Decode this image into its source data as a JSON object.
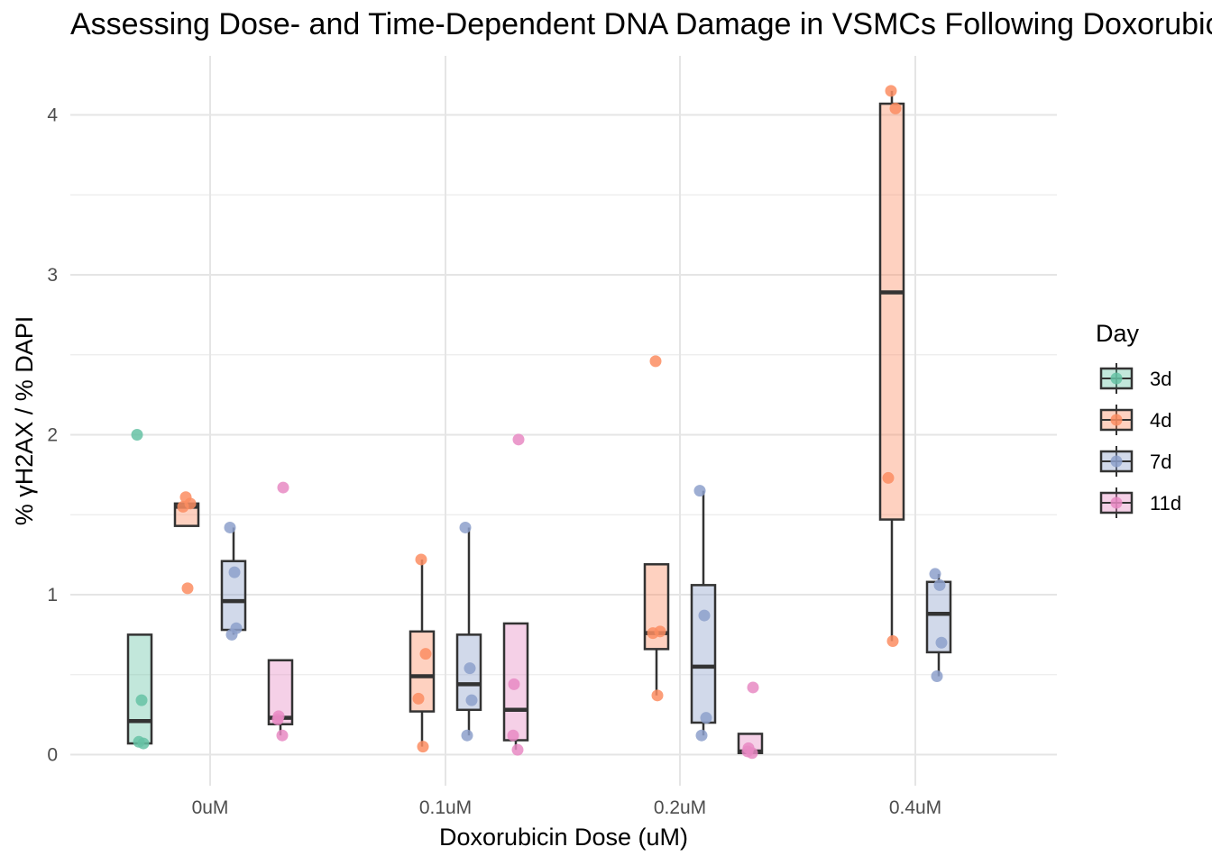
{
  "chart_data": {
    "type": "box",
    "title": "Assessing Dose- and Time-Dependent DNA Damage in VSMCs Following Doxorubicin",
    "xlabel": "Doxorubicin Dose (uM)",
    "ylabel": "% γH2AX / % DAPI",
    "categories": [
      "0uM",
      "0.1uM",
      "0.2uM",
      "0.4uM"
    ],
    "ylim": [
      -0.2,
      4.3
    ],
    "yticks": [
      0,
      1,
      2,
      3,
      4
    ],
    "grid": true,
    "legend": {
      "title": "Day",
      "position": "right",
      "entries": [
        "3d",
        "4d",
        "7d",
        "11d"
      ]
    },
    "series": [
      {
        "name": "3d",
        "color": "#66C2A5",
        "groups": [
          {
            "category": "0uM",
            "box": {
              "q1": 0.07,
              "median": 0.21,
              "q3": 0.75,
              "whisker_low": 0.07,
              "whisker_high": 0.75
            },
            "points": [
              2.0,
              0.34,
              0.08,
              0.07
            ]
          }
        ]
      },
      {
        "name": "4d",
        "color": "#FC8D62",
        "groups": [
          {
            "category": "0uM",
            "box": {
              "q1": 1.43,
              "median": 1.55,
              "q3": 1.57,
              "whisker_low": 1.43,
              "whisker_high": 1.57
            },
            "points": [
              1.61,
              1.57,
              1.55,
              1.04
            ]
          },
          {
            "category": "0.1uM",
            "box": {
              "q1": 0.27,
              "median": 0.49,
              "q3": 0.77,
              "whisker_low": 0.05,
              "whisker_high": 1.22
            },
            "points": [
              1.22,
              0.63,
              0.35,
              0.05
            ]
          },
          {
            "category": "0.2uM",
            "box": {
              "q1": 0.66,
              "median": 0.76,
              "q3": 1.19,
              "whisker_low": 0.37,
              "whisker_high": 1.19
            },
            "points": [
              2.46,
              0.77,
              0.76,
              0.37
            ]
          },
          {
            "category": "0.4uM",
            "box": {
              "q1": 1.47,
              "median": 2.89,
              "q3": 4.07,
              "whisker_low": 0.71,
              "whisker_high": 4.15
            },
            "points": [
              4.15,
              4.04,
              1.73,
              0.71
            ]
          }
        ]
      },
      {
        "name": "7d",
        "color": "#8DA0CB",
        "groups": [
          {
            "category": "0uM",
            "box": {
              "q1": 0.78,
              "median": 0.96,
              "q3": 1.21,
              "whisker_low": 0.75,
              "whisker_high": 1.42
            },
            "points": [
              1.42,
              1.14,
              0.79,
              0.75
            ]
          },
          {
            "category": "0.1uM",
            "box": {
              "q1": 0.28,
              "median": 0.44,
              "q3": 0.75,
              "whisker_low": 0.12,
              "whisker_high": 1.42
            },
            "points": [
              1.42,
              0.54,
              0.34,
              0.12
            ]
          },
          {
            "category": "0.2uM",
            "box": {
              "q1": 0.2,
              "median": 0.55,
              "q3": 1.06,
              "whisker_low": 0.12,
              "whisker_high": 1.65
            },
            "points": [
              1.65,
              0.87,
              0.23,
              0.12
            ]
          },
          {
            "category": "0.4uM",
            "box": {
              "q1": 0.64,
              "median": 0.88,
              "q3": 1.08,
              "whisker_low": 0.49,
              "whisker_high": 1.13
            },
            "points": [
              1.13,
              1.06,
              0.7,
              0.49
            ]
          }
        ]
      },
      {
        "name": "11d",
        "color": "#E78AC3",
        "groups": [
          {
            "category": "0uM",
            "box": {
              "q1": 0.19,
              "median": 0.23,
              "q3": 0.59,
              "whisker_low": 0.12,
              "whisker_high": 0.59
            },
            "points": [
              1.67,
              0.24,
              0.22,
              0.12
            ]
          },
          {
            "category": "0.1uM",
            "box": {
              "q1": 0.09,
              "median": 0.28,
              "q3": 0.82,
              "whisker_low": 0.03,
              "whisker_high": 0.82
            },
            "points": [
              1.97,
              0.44,
              0.12,
              0.03
            ]
          },
          {
            "category": "0.2uM",
            "box": {
              "q1": 0.01,
              "median": 0.02,
              "q3": 0.13,
              "whisker_low": 0.0,
              "whisker_high": 0.13
            },
            "points": [
              0.42,
              0.04,
              0.02,
              0.01
            ]
          }
        ]
      }
    ]
  }
}
